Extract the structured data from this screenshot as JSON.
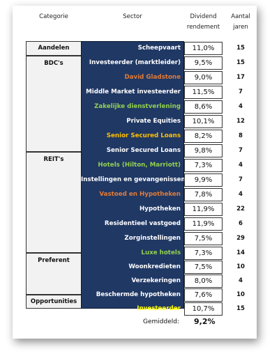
{
  "headers": {
    "categorie": "Categorie",
    "sector": "Sector",
    "dividend": "Dividend rendement",
    "jaren": "Aantal jaren"
  },
  "categories": [
    {
      "label": "Aandelen"
    },
    {
      "label": "BDC's"
    },
    {
      "label": "REIT's"
    },
    {
      "label": "Preferent"
    },
    {
      "label": "Opportunities"
    }
  ],
  "rows": [
    {
      "sector": "Scheepvaart",
      "color": "#ffffff",
      "pct": "11,0%",
      "years": "15"
    },
    {
      "sector": "Investeerder (marktleider)",
      "color": "#ffffff",
      "pct": "9,5%",
      "years": "15"
    },
    {
      "sector": "David Gladstone",
      "color": "#e07b39",
      "pct": "9,0%",
      "years": "17"
    },
    {
      "sector": "Middle Market investeerder",
      "color": "#ffffff",
      "pct": "11,5%",
      "years": "7"
    },
    {
      "sector": "Zakelijke dienstverlening",
      "color": "#92d050",
      "pct": "8,6%",
      "years": "4"
    },
    {
      "sector": "Private Equities",
      "color": "#ffffff",
      "pct": "10,1%",
      "years": "12"
    },
    {
      "sector": "Senior Secured Loans",
      "color": "#ffc000",
      "pct": "8,2%",
      "years": "8"
    },
    {
      "sector": "Senior Secured Loans",
      "color": "#ffffff",
      "pct": "9,8%",
      "years": "7"
    },
    {
      "sector": "Hotels (Hilton, Marriott)",
      "color": "#92d050",
      "pct": "7,3%",
      "years": "4"
    },
    {
      "sector": "Instellingen en gevangenissen",
      "color": "#ffffff",
      "pct": "9,9%",
      "years": "7"
    },
    {
      "sector": "Vastoed en Hypotheken",
      "color": "#e07b39",
      "pct": "7,8%",
      "years": "4"
    },
    {
      "sector": "Hypotheken",
      "color": "#ffffff",
      "pct": "11,9%",
      "years": "22"
    },
    {
      "sector": "Residentieel vastgoed",
      "color": "#ffffff",
      "pct": "11,9%",
      "years": "6"
    },
    {
      "sector": "Zorginstellingen",
      "color": "#ffffff",
      "pct": "7,5%",
      "years": "29"
    },
    {
      "sector": "Luxe hotels",
      "color": "#92d050",
      "pct": "7,3%",
      "years": "14"
    },
    {
      "sector": "Woonkredieten",
      "color": "#ffffff",
      "pct": "7,5%",
      "years": "10"
    },
    {
      "sector": "Verzekeringen",
      "color": "#ffffff",
      "pct": "8,0%",
      "years": "4"
    },
    {
      "sector": "Beschermde hypotheken",
      "color": "#ffffff",
      "pct": "7,6%",
      "years": "10"
    },
    {
      "sector": "Investeerder",
      "color": "#ffff00",
      "pct": "10,7%",
      "years": "15"
    }
  ],
  "average": {
    "label": "Gemiddeld:",
    "value": "9,2%"
  }
}
